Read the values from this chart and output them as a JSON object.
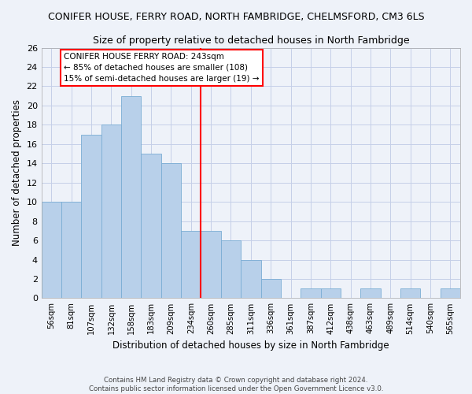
{
  "title": "CONIFER HOUSE, FERRY ROAD, NORTH FAMBRIDGE, CHELMSFORD, CM3 6LS",
  "subtitle": "Size of property relative to detached houses in North Fambridge",
  "xlabel": "Distribution of detached houses by size in North Fambridge",
  "ylabel": "Number of detached properties",
  "categories": [
    "56sqm",
    "81sqm",
    "107sqm",
    "132sqm",
    "158sqm",
    "183sqm",
    "209sqm",
    "234sqm",
    "260sqm",
    "285sqm",
    "311sqm",
    "336sqm",
    "361sqm",
    "387sqm",
    "412sqm",
    "438sqm",
    "463sqm",
    "489sqm",
    "514sqm",
    "540sqm",
    "565sqm"
  ],
  "values": [
    10,
    10,
    17,
    18,
    21,
    15,
    14,
    7,
    7,
    6,
    4,
    2,
    0,
    1,
    1,
    0,
    1,
    0,
    1,
    0,
    1
  ],
  "bar_color": "#b8d0ea",
  "bar_edgecolor": "#7aadd4",
  "vline_index": 7.5,
  "vline_color": "red",
  "ylim": [
    0,
    26
  ],
  "yticks": [
    0,
    2,
    4,
    6,
    8,
    10,
    12,
    14,
    16,
    18,
    20,
    22,
    24,
    26
  ],
  "annotation_title": "CONIFER HOUSE FERRY ROAD: 243sqm",
  "annotation_line1": "← 85% of detached houses are smaller (108)",
  "annotation_line2": "15% of semi-detached houses are larger (19) →",
  "footer1": "Contains HM Land Registry data © Crown copyright and database right 2024.",
  "footer2": "Contains public sector information licensed under the Open Government Licence v3.0.",
  "background_color": "#eef2f9",
  "grid_color": "#c5cfe8"
}
